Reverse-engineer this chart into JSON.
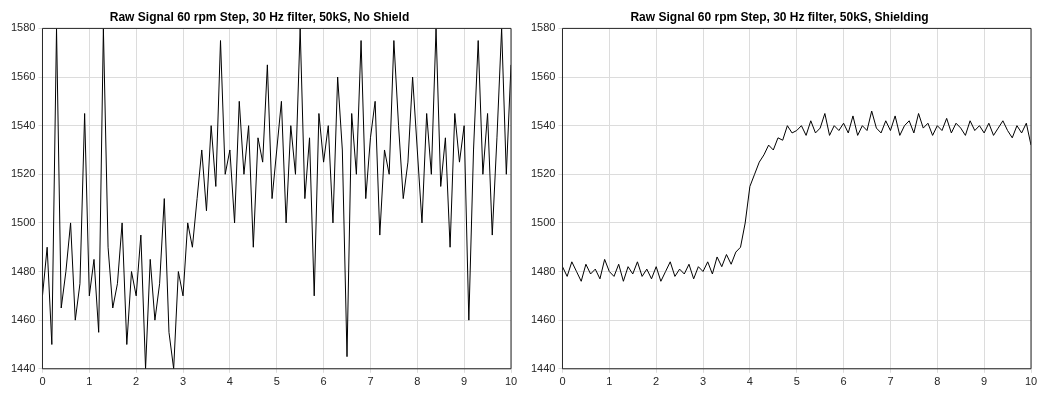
{
  "chart_data": [
    {
      "type": "line",
      "title": "Raw Signal 60 rpm Step, 30 Hz filter, 50kS, No Shield",
      "xlim": [
        0,
        10
      ],
      "xticks": [
        0,
        1,
        2,
        3,
        4,
        5,
        6,
        7,
        8,
        9,
        10
      ],
      "ylim": [
        1440,
        1580
      ],
      "yticks": [
        1440,
        1460,
        1480,
        1500,
        1520,
        1540,
        1560,
        1580
      ],
      "grid": true,
      "legend": false,
      "marker": "none",
      "line_style": "solid",
      "series": [
        {
          "color": "#000000",
          "x": [
            0,
            0.1,
            0.2,
            0.3,
            0.4,
            0.5,
            0.6,
            0.7,
            0.8,
            0.9,
            1,
            1.1,
            1.2,
            1.3,
            1.4,
            1.5,
            1.6,
            1.7,
            1.8,
            1.9,
            2,
            2.1,
            2.2,
            2.3,
            2.4,
            2.5,
            2.6,
            2.7,
            2.8,
            2.9,
            3,
            3.1,
            3.2,
            3.3,
            3.4,
            3.5,
            3.6,
            3.7,
            3.8,
            3.9,
            4,
            4.1,
            4.2,
            4.3,
            4.4,
            4.5,
            4.6,
            4.7,
            4.8,
            4.9,
            5,
            5.1,
            5.2,
            5.3,
            5.4,
            5.5,
            5.6,
            5.7,
            5.8,
            5.9,
            6,
            6.1,
            6.2,
            6.3,
            6.4,
            6.5,
            6.6,
            6.7,
            6.8,
            6.9,
            7,
            7.1,
            7.2,
            7.3,
            7.4,
            7.5,
            7.6,
            7.7,
            7.8,
            7.9,
            8,
            8.1,
            8.2,
            8.3,
            8.4,
            8.5,
            8.6,
            8.7,
            8.8,
            8.9,
            9,
            9.1,
            9.2,
            9.3,
            9.4,
            9.5,
            9.6,
            9.7,
            9.8,
            9.9,
            10
          ],
          "values": [
            1470,
            1490,
            1450,
            1580,
            1465,
            1480,
            1500,
            1460,
            1475,
            1545,
            1470,
            1485,
            1455,
            1580,
            1490,
            1465,
            1475,
            1500,
            1450,
            1480,
            1470,
            1495,
            1440,
            1485,
            1460,
            1475,
            1510,
            1455,
            1440,
            1480,
            1470,
            1500,
            1490,
            1510,
            1530,
            1505,
            1540,
            1515,
            1575,
            1520,
            1530,
            1500,
            1550,
            1520,
            1540,
            1490,
            1535,
            1525,
            1565,
            1510,
            1530,
            1550,
            1500,
            1540,
            1520,
            1580,
            1510,
            1535,
            1470,
            1545,
            1525,
            1540,
            1500,
            1560,
            1530,
            1445,
            1545,
            1520,
            1575,
            1510,
            1535,
            1550,
            1495,
            1530,
            1520,
            1575,
            1540,
            1510,
            1525,
            1560,
            1530,
            1500,
            1545,
            1520,
            1580,
            1515,
            1535,
            1490,
            1545,
            1525,
            1540,
            1460,
            1530,
            1575,
            1520,
            1545,
            1495,
            1535,
            1580,
            1520,
            1565
          ]
        }
      ]
    },
    {
      "type": "line",
      "title": "Raw Signal 60 rpm Step, 30 Hz filter, 50kS, Shielding",
      "xlim": [
        0,
        10
      ],
      "xticks": [
        0,
        1,
        2,
        3,
        4,
        5,
        6,
        7,
        8,
        9,
        10
      ],
      "ylim": [
        1440,
        1580
      ],
      "yticks": [
        1440,
        1460,
        1480,
        1500,
        1520,
        1540,
        1560,
        1580
      ],
      "grid": true,
      "legend": false,
      "marker": "none",
      "line_style": "solid",
      "series": [
        {
          "color": "#000000",
          "x": [
            0,
            0.1,
            0.2,
            0.3,
            0.4,
            0.5,
            0.6,
            0.7,
            0.8,
            0.9,
            1,
            1.1,
            1.2,
            1.3,
            1.4,
            1.5,
            1.6,
            1.7,
            1.8,
            1.9,
            2,
            2.1,
            2.2,
            2.3,
            2.4,
            2.5,
            2.6,
            2.7,
            2.8,
            2.9,
            3,
            3.1,
            3.2,
            3.3,
            3.4,
            3.5,
            3.6,
            3.7,
            3.8,
            3.9,
            4,
            4.1,
            4.2,
            4.3,
            4.4,
            4.5,
            4.6,
            4.7,
            4.8,
            4.9,
            5,
            5.1,
            5.2,
            5.3,
            5.4,
            5.5,
            5.6,
            5.7,
            5.8,
            5.9,
            6,
            6.1,
            6.2,
            6.3,
            6.4,
            6.5,
            6.6,
            6.7,
            6.8,
            6.9,
            7,
            7.1,
            7.2,
            7.3,
            7.4,
            7.5,
            7.6,
            7.7,
            7.8,
            7.9,
            8,
            8.1,
            8.2,
            8.3,
            8.4,
            8.5,
            8.6,
            8.7,
            8.8,
            8.9,
            9,
            9.1,
            9.2,
            9.3,
            9.4,
            9.5,
            9.6,
            9.7,
            9.8,
            9.9,
            10
          ],
          "values": [
            1482,
            1478,
            1484,
            1480,
            1476,
            1483,
            1479,
            1481,
            1477,
            1485,
            1480,
            1478,
            1483,
            1476,
            1482,
            1479,
            1484,
            1478,
            1481,
            1477,
            1482,
            1476,
            1480,
            1484,
            1478,
            1481,
            1479,
            1483,
            1477,
            1482,
            1480,
            1484,
            1479,
            1486,
            1482,
            1487,
            1483,
            1488,
            1490,
            1500,
            1515,
            1520,
            1525,
            1528,
            1532,
            1530,
            1535,
            1534,
            1540,
            1537,
            1538,
            1540,
            1536,
            1542,
            1537,
            1539,
            1545,
            1536,
            1540,
            1538,
            1541,
            1537,
            1544,
            1536,
            1540,
            1538,
            1546,
            1539,
            1537,
            1542,
            1538,
            1544,
            1536,
            1540,
            1542,
            1537,
            1545,
            1539,
            1541,
            1536,
            1540,
            1538,
            1543,
            1537,
            1541,
            1539,
            1536,
            1542,
            1538,
            1540,
            1537,
            1541,
            1536,
            1539,
            1542,
            1538,
            1535,
            1540,
            1537,
            1541,
            1532
          ]
        }
      ]
    }
  ]
}
